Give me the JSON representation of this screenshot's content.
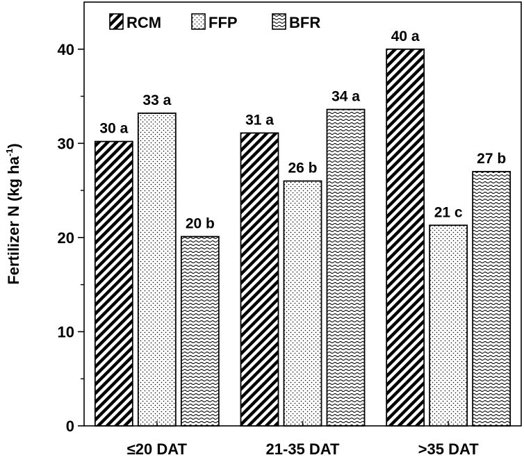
{
  "chart_data": {
    "type": "bar",
    "title": "",
    "xlabel": "",
    "ylabel": {
      "main": "Fertilizer N (kg ha",
      "sup": "-1",
      "close": ")"
    },
    "ylim": [
      0,
      45
    ],
    "yticks": [
      0,
      10,
      20,
      30,
      40
    ],
    "categories": [
      "≤20 DAT",
      "21-35 DAT",
      ">35 DAT"
    ],
    "series": [
      {
        "name": "RCM",
        "values": [
          30.2,
          31.1,
          40.0
        ],
        "labels": [
          "30 a",
          "31 a",
          "40 a"
        ],
        "pattern": "hatch"
      },
      {
        "name": "FFP",
        "values": [
          33.2,
          26.0,
          21.3
        ],
        "labels": [
          "33 a",
          "26 b",
          "21 c"
        ],
        "pattern": "dots"
      },
      {
        "name": "BFR",
        "values": [
          20.1,
          33.6,
          27.0
        ],
        "labels": [
          "20 b",
          "34 a",
          "27 b"
        ],
        "pattern": "waves"
      }
    ],
    "legend_position": "top-left",
    "grid": false
  }
}
